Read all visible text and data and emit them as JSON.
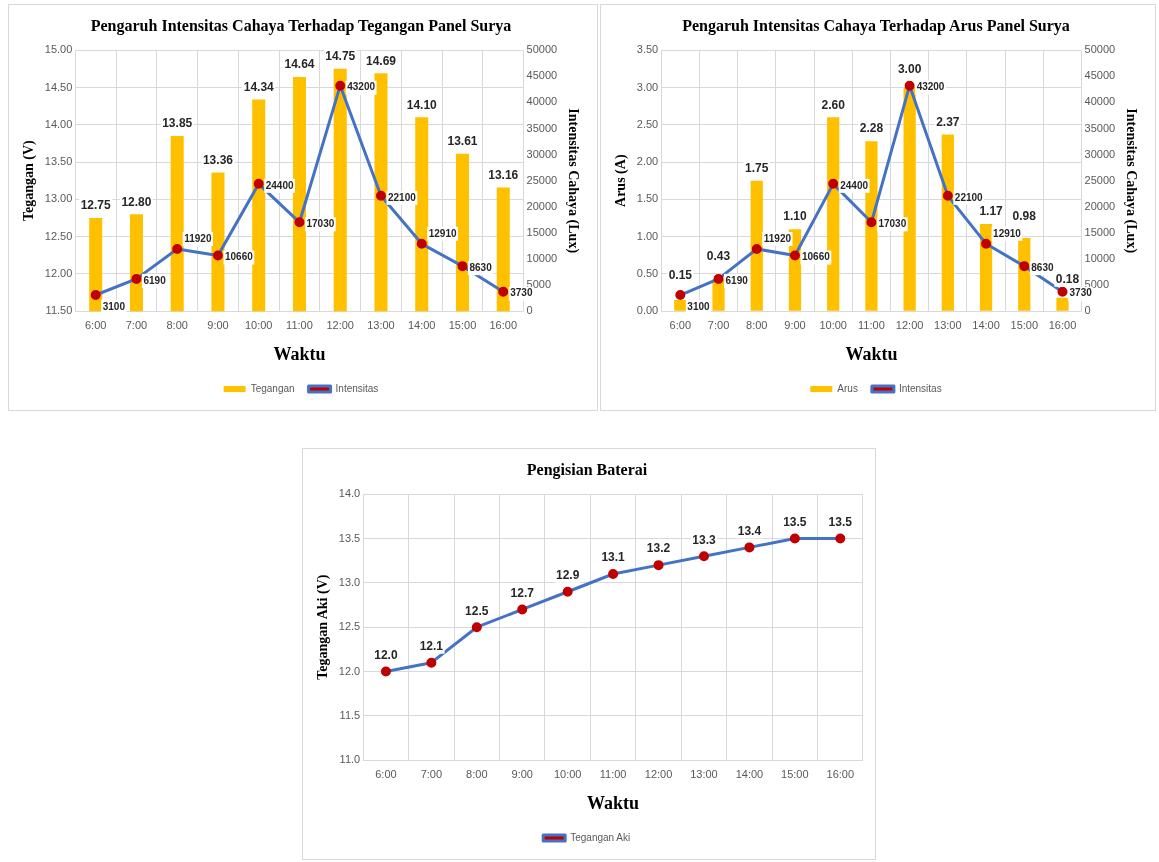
{
  "chart_data": [
    {
      "type": "bar",
      "title": "Pengaruh Intensitas Cahaya Terhadap Tegangan Panel Surya",
      "xlabel": "Waktu",
      "ylabel": "Tegangan (V)",
      "y2label": "Intensitas Cahaya (Lux)",
      "categories": [
        "6:00",
        "7:00",
        "8:00",
        "9:00",
        "10:00",
        "11:00",
        "12:00",
        "13:00",
        "14:00",
        "15:00",
        "16:00"
      ],
      "series": [
        {
          "name": "Tegangan",
          "type": "bar",
          "color": "#ffc000",
          "values": [
            12.75,
            12.8,
            13.85,
            13.36,
            14.34,
            14.64,
            14.75,
            14.69,
            14.1,
            13.61,
            13.16
          ],
          "value_labels": [
            "12.75",
            "12.80",
            "13.85",
            "13.36",
            "14.34",
            "14.64",
            "14.75",
            "14.69",
            "14.10",
            "13.61",
            "13.16"
          ]
        },
        {
          "name": "Intensitas",
          "type": "line",
          "axis": "y2",
          "color": "#4472c4",
          "values": [
            3100,
            6190,
            11920,
            10660,
            24400,
            17030,
            43200,
            22100,
            12910,
            8630,
            3730
          ],
          "value_labels": [
            "3100",
            "6190",
            "11920",
            "10660",
            "24400",
            "17030",
            "43200",
            "22100",
            "12910",
            "8630",
            "3730"
          ]
        }
      ],
      "ylim": [
        11.5,
        15
      ],
      "yticks": [
        {
          "value": 11.5,
          "label": "11.50"
        },
        {
          "value": 12,
          "label": "12.00"
        },
        {
          "value": 12.5,
          "label": "12.50"
        },
        {
          "value": 13,
          "label": "13.00"
        },
        {
          "value": 13.5,
          "label": "13.50"
        },
        {
          "value": 14,
          "label": "14.00"
        },
        {
          "value": 14.5,
          "label": "14.50"
        },
        {
          "value": 15,
          "label": "15.00"
        }
      ],
      "y2lim": [
        0,
        50000
      ],
      "y2ticks": [
        0,
        5000,
        10000,
        15000,
        20000,
        25000,
        30000,
        35000,
        40000,
        45000,
        50000
      ],
      "grid": true,
      "legend": "bottom",
      "marker": "circle"
    },
    {
      "type": "bar",
      "title": "Pengaruh Intensitas Cahaya Terhadap Arus Panel Surya",
      "xlabel": "Waktu",
      "ylabel": "Arus (A)",
      "y2label": "Intensitas Cahaya (Lux)",
      "categories": [
        "6:00",
        "7:00",
        "8:00",
        "9:00",
        "10:00",
        "11:00",
        "12:00",
        "13:00",
        "14:00",
        "15:00",
        "16:00"
      ],
      "series": [
        {
          "name": "Arus",
          "type": "bar",
          "color": "#ffc000",
          "values": [
            0.15,
            0.43,
            1.75,
            1.1,
            2.6,
            2.28,
            3.0,
            2.37,
            1.17,
            0.98,
            0.18
          ],
          "value_labels": [
            "0.15",
            "0.43",
            "1.75",
            "1.10",
            "2.60",
            "2.28",
            "3.00",
            "2.37",
            "1.17",
            "0.98",
            "0.18"
          ]
        },
        {
          "name": "Intensitas",
          "type": "line",
          "axis": "y2",
          "color": "#4472c4",
          "values": [
            3100,
            6190,
            11920,
            10660,
            24400,
            17030,
            43200,
            22100,
            12910,
            8630,
            3730
          ],
          "value_labels": [
            "3100",
            "6190",
            "11920",
            "10660",
            "24400",
            "17030",
            "43200",
            "22100",
            "12910",
            "8630",
            "3730"
          ]
        }
      ],
      "ylim": [
        0,
        3.5
      ],
      "yticks": [
        {
          "value": 0,
          "label": "0.00"
        },
        {
          "value": 0.5,
          "label": "0.50"
        },
        {
          "value": 1,
          "label": "1.00"
        },
        {
          "value": 1.5,
          "label": "1.50"
        },
        {
          "value": 2,
          "label": "2.00"
        },
        {
          "value": 2.5,
          "label": "2.50"
        },
        {
          "value": 3,
          "label": "3.00"
        },
        {
          "value": 3.5,
          "label": "3.50"
        }
      ],
      "y2lim": [
        0,
        50000
      ],
      "y2ticks": [
        0,
        5000,
        10000,
        15000,
        20000,
        25000,
        30000,
        35000,
        40000,
        45000,
        50000
      ],
      "grid": true,
      "legend": "bottom",
      "marker": "circle"
    },
    {
      "type": "line",
      "title": "Pengisian Baterai",
      "xlabel": "Waktu",
      "ylabel": "Tegangan Aki (V)",
      "categories": [
        "6:00",
        "7:00",
        "8:00",
        "9:00",
        "10:00",
        "11:00",
        "12:00",
        "13:00",
        "14:00",
        "15:00",
        "16:00"
      ],
      "series": [
        {
          "name": "Tegangan Aki",
          "color": "#4472c4",
          "values": [
            12.0,
            12.1,
            12.5,
            12.7,
            12.9,
            13.1,
            13.2,
            13.3,
            13.4,
            13.5,
            13.5
          ],
          "value_labels": [
            "12.0",
            "12.1",
            "12.5",
            "12.7",
            "12.9",
            "13.1",
            "13.2",
            "13.3",
            "13.4",
            "13.5",
            "13.5"
          ]
        }
      ],
      "ylim": [
        11,
        14
      ],
      "yticks": [
        {
          "value": 11,
          "label": "11.0"
        },
        {
          "value": 11.5,
          "label": "11.5"
        },
        {
          "value": 12,
          "label": "12.0"
        },
        {
          "value": 12.5,
          "label": "12.5"
        },
        {
          "value": 13,
          "label": "13.0"
        },
        {
          "value": 13.5,
          "label": "13.5"
        },
        {
          "value": 14,
          "label": "14.0"
        }
      ],
      "grid": true,
      "legend": "bottom",
      "marker": "circle"
    }
  ]
}
